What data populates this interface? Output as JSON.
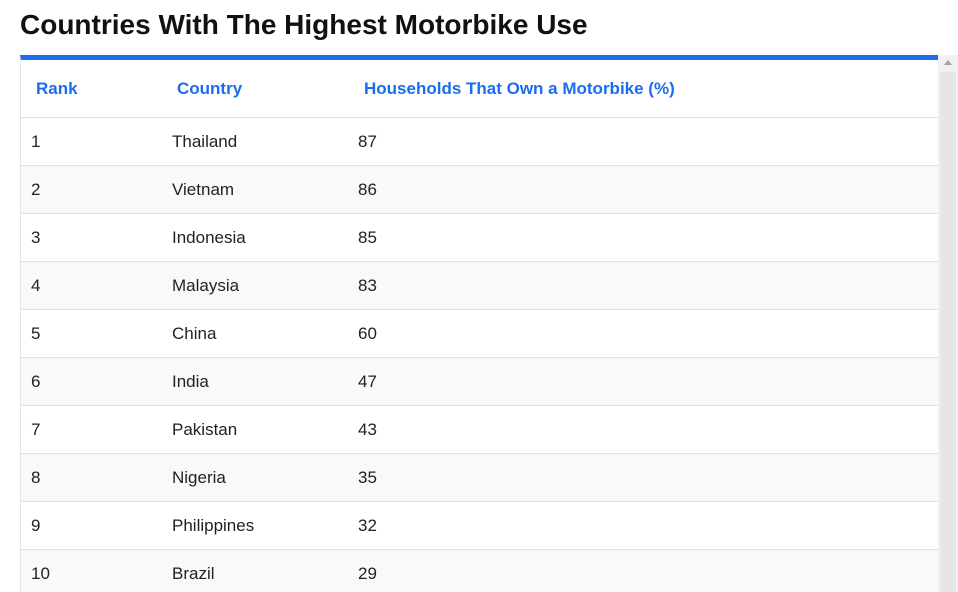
{
  "page": {
    "title": "Countries With The Highest Motorbike Use"
  },
  "table": {
    "headers": {
      "rank": "Rank",
      "country": "Country",
      "households": "Households That Own a Motorbike (%)"
    },
    "rows": [
      {
        "rank": "1",
        "country": "Thailand",
        "households": "87"
      },
      {
        "rank": "2",
        "country": "Vietnam",
        "households": "86"
      },
      {
        "rank": "3",
        "country": "Indonesia",
        "households": "85"
      },
      {
        "rank": "4",
        "country": "Malaysia",
        "households": "83"
      },
      {
        "rank": "5",
        "country": "China",
        "households": "60"
      },
      {
        "rank": "6",
        "country": "India",
        "households": "47"
      },
      {
        "rank": "7",
        "country": "Pakistan",
        "households": "43"
      },
      {
        "rank": "8",
        "country": "Nigeria",
        "households": "35"
      },
      {
        "rank": "9",
        "country": "Philippines",
        "households": "32"
      },
      {
        "rank": "10",
        "country": "Brazil",
        "households": "29"
      }
    ]
  },
  "colors": {
    "accent": "#1a6cf0",
    "title_text": "#111111",
    "cell_text": "#222222",
    "stripe": "#f9f9f9",
    "border": "#e0e0e0"
  }
}
